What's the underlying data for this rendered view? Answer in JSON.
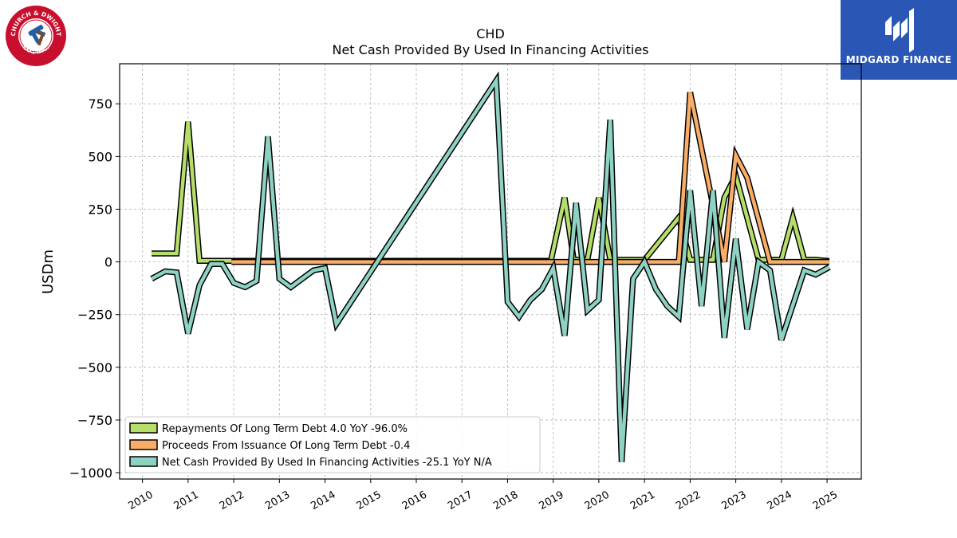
{
  "brand": {
    "left_logo_text_top": "CHURCH & DWIGHT",
    "left_logo_text_bottom": "CO., INC.",
    "right_logo_text": "MIDGARD FINANCE",
    "left_logo_color": "#c8102e",
    "right_logo_color": "#2a57b5"
  },
  "chart_data": {
    "type": "line",
    "title": "CHD",
    "subtitle": "Net Cash Provided By Used In Financing Activities",
    "xlabel": "",
    "ylabel": "USDm",
    "xlim": [
      2009.5,
      2025.75
    ],
    "ylim": [
      -1030,
      940
    ],
    "x_ticks": [
      2010,
      2011,
      2012,
      2013,
      2014,
      2015,
      2016,
      2017,
      2018,
      2019,
      2020,
      2021,
      2022,
      2023,
      2024,
      2025
    ],
    "x_tick_labels": [
      "2010",
      "2011",
      "2012",
      "2013",
      "2014",
      "2015",
      "2016",
      "2017",
      "2018",
      "2019",
      "2020",
      "2021",
      "2022",
      "2023",
      "2024",
      "2025"
    ],
    "y_ticks": [
      750,
      500,
      250,
      0,
      -250,
      -500,
      -750,
      -1000
    ],
    "y_tick_labels": [
      "750",
      "500",
      "250",
      "0",
      "−250",
      "−500",
      "−750",
      "−1000"
    ],
    "grid": true,
    "legend_position": "lower-left",
    "series": [
      {
        "name": "Repayments Of Long Term Debt  4.0 YoY -96.0%",
        "color": "#b5de6b",
        "points": [
          [
            2010.2,
            40
          ],
          [
            2010.75,
            40
          ],
          [
            2011.0,
            665
          ],
          [
            2011.25,
            5
          ],
          [
            2011.5,
            5
          ],
          [
            2011.75,
            5
          ],
          [
            2011.95,
            5
          ],
          [
            2018.95,
            5
          ],
          [
            2019.25,
            305
          ],
          [
            2019.45,
            10
          ],
          [
            2019.75,
            10
          ],
          [
            2020.0,
            305
          ],
          [
            2020.25,
            10
          ],
          [
            2020.5,
            10
          ],
          [
            2020.75,
            10
          ],
          [
            2021.0,
            10
          ],
          [
            2021.75,
            210
          ],
          [
            2022.0,
            10
          ],
          [
            2022.25,
            10
          ],
          [
            2022.5,
            10
          ],
          [
            2022.75,
            305
          ],
          [
            2023.0,
            410
          ],
          [
            2023.25,
            210
          ],
          [
            2023.5,
            10
          ],
          [
            2023.75,
            10
          ],
          [
            2024.0,
            10
          ],
          [
            2024.25,
            210
          ],
          [
            2024.5,
            10
          ],
          [
            2024.75,
            10
          ],
          [
            2025.05,
            4
          ]
        ]
      },
      {
        "name": "Proceeds From Issuance Of Long Term Debt  -0.4",
        "color": "#f9ad66",
        "points": [
          [
            2011.95,
            0
          ],
          [
            2021.75,
            0
          ],
          [
            2022.0,
            805
          ],
          [
            2022.75,
            0
          ],
          [
            2023.0,
            505
          ],
          [
            2023.25,
            400
          ],
          [
            2023.75,
            0
          ],
          [
            2024.0,
            0
          ],
          [
            2024.75,
            0
          ],
          [
            2025.05,
            0
          ]
        ]
      },
      {
        "name": "Net Cash Provided By Used In Financing Activities  -25.1 YoY N/A",
        "color": "#8ed2c4",
        "points": [
          [
            2010.2,
            -80
          ],
          [
            2010.5,
            -45
          ],
          [
            2010.75,
            -50
          ],
          [
            2011.0,
            -340
          ],
          [
            2011.25,
            -110
          ],
          [
            2011.5,
            -10
          ],
          [
            2011.75,
            -10
          ],
          [
            2012.0,
            -100
          ],
          [
            2012.25,
            -120
          ],
          [
            2012.5,
            -90
          ],
          [
            2012.75,
            595
          ],
          [
            2013.0,
            -80
          ],
          [
            2013.25,
            -120
          ],
          [
            2013.75,
            -40
          ],
          [
            2014.0,
            -30
          ],
          [
            2014.25,
            -295
          ],
          [
            2017.75,
            860
          ],
          [
            2018.0,
            -190
          ],
          [
            2018.25,
            -260
          ],
          [
            2018.5,
            -180
          ],
          [
            2018.75,
            -130
          ],
          [
            2019.0,
            -30
          ],
          [
            2019.25,
            -350
          ],
          [
            2019.5,
            280
          ],
          [
            2019.75,
            -230
          ],
          [
            2020.0,
            -180
          ],
          [
            2020.25,
            675
          ],
          [
            2020.5,
            -950
          ],
          [
            2020.75,
            -80
          ],
          [
            2021.0,
            0
          ],
          [
            2021.25,
            -130
          ],
          [
            2021.5,
            -210
          ],
          [
            2021.75,
            -260
          ],
          [
            2022.0,
            340
          ],
          [
            2022.25,
            -210
          ],
          [
            2022.5,
            340
          ],
          [
            2022.75,
            -360
          ],
          [
            2023.0,
            110
          ],
          [
            2023.25,
            -320
          ],
          [
            2023.5,
            0
          ],
          [
            2023.75,
            -40
          ],
          [
            2024.0,
            -370
          ],
          [
            2024.5,
            -40
          ],
          [
            2024.75,
            -60
          ],
          [
            2025.05,
            -25
          ]
        ]
      }
    ]
  }
}
